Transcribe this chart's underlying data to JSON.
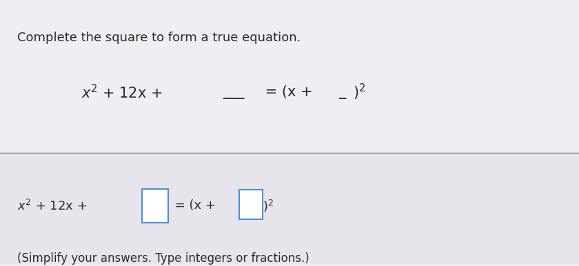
{
  "bg_color": "#e8e4ec",
  "top_section_bg": "#f0edf3",
  "bottom_section_bg": "#e8e4ec",
  "divider_color": "#999999",
  "text_color": "#2a2a2a",
  "box_color": "#4a90d9",
  "title": "Complete the square to form a true equation.",
  "line1_parts": [
    "x² + 12x + ",
    "___ ",
    "= (x + ",
    "_",
    ")²"
  ],
  "line2_left": "x² + 12x + ",
  "line2_right": " = (x + ",
  "line2_end": ")²",
  "note": "(Simplify your answers. Type integers or fractions.)",
  "title_fontsize": 13,
  "eq_fontsize": 15,
  "eq2_fontsize": 13,
  "note_fontsize": 12
}
